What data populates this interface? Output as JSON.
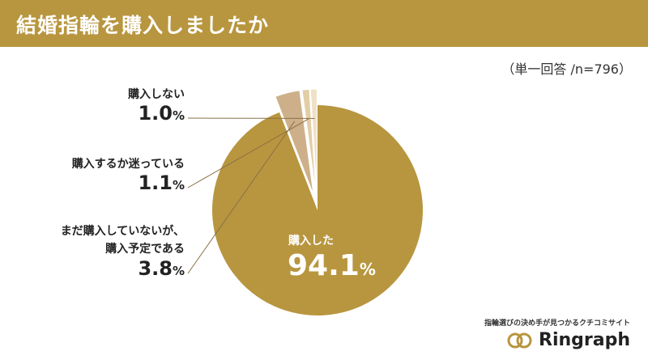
{
  "header": {
    "title": "結婚指輪を購入しましたか",
    "subtitle": "（単一回答 /n=796）"
  },
  "chart_data": {
    "type": "pie",
    "title": "結婚指輪を購入しましたか",
    "subtitle": "（単一回答 /n=796）",
    "slices": [
      {
        "label": "購入した",
        "value": 94.1,
        "color": "#b8963f"
      },
      {
        "label": "まだ購入していないが、購入予定である",
        "value": 3.8,
        "color": "#cdb089"
      },
      {
        "label": "購入するか迷っている",
        "value": 1.1,
        "color": "#e2cda5"
      },
      {
        "label": "購入しない",
        "value": 1.0,
        "color": "#efe1c6"
      }
    ]
  },
  "labels": {
    "not_buy": {
      "text": "購入しない",
      "value": "1.0",
      "unit": "%"
    },
    "undecided": {
      "text": "購入するか迷っている",
      "value": "1.1",
      "unit": "%"
    },
    "plan_line1": "まだ購入していないが、",
    "plan_line2": "購入予定である",
    "plan_value": "3.8",
    "plan_unit": "%",
    "bought_text": "購入した",
    "bought_value": "94.1",
    "bought_unit": "%"
  },
  "brand": {
    "tagline": "指輪選びの決め手が見つかるクチコミサイト",
    "name": "Ringraph"
  },
  "colors": {
    "accent": "#b8963f",
    "leader_line": "#8a7048"
  }
}
